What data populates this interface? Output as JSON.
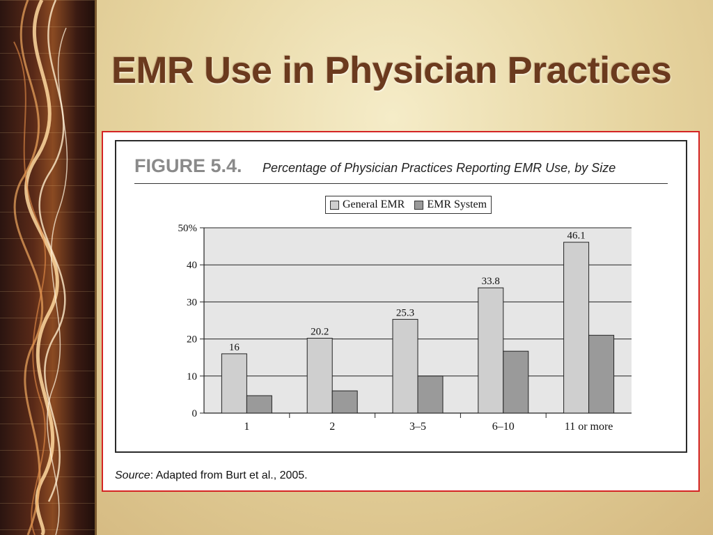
{
  "slide": {
    "title": "EMR Use in Physician Practices"
  },
  "figure": {
    "label": "FIGURE 5.4.",
    "caption": "Percentage of Physician Practices Reporting EMR Use, by Size",
    "source_label": "Source",
    "source_text": ": Adapted from Burt et al., 2005."
  },
  "colors": {
    "title": "#6b3a1e",
    "frame_border": "#d42424",
    "plot_bg": "#e6e6e6",
    "general_emr": "#cfcfcf",
    "emr_system": "#9a9a9a"
  },
  "chart_data": {
    "type": "bar",
    "categories": [
      "1",
      "2",
      "3–5",
      "6–10",
      "11 or more"
    ],
    "series": [
      {
        "name": "General EMR",
        "values": [
          16,
          20.2,
          25.3,
          33.8,
          46.1
        ],
        "color": "#cfcfcf"
      },
      {
        "name": "EMR System",
        "values": [
          4.7,
          6.0,
          10.0,
          16.7,
          21.0
        ],
        "color": "#9a9a9a"
      }
    ],
    "data_labels": [
      "16",
      "20.2",
      "25.3",
      "33.8",
      "46.1"
    ],
    "y_ticks": [
      0,
      10,
      20,
      30,
      40,
      50
    ],
    "y_tick_labels": [
      "0",
      "10",
      "20",
      "30",
      "40",
      "50%"
    ],
    "ylim": [
      0,
      50
    ],
    "grid": true,
    "legend_position": "top-center"
  }
}
